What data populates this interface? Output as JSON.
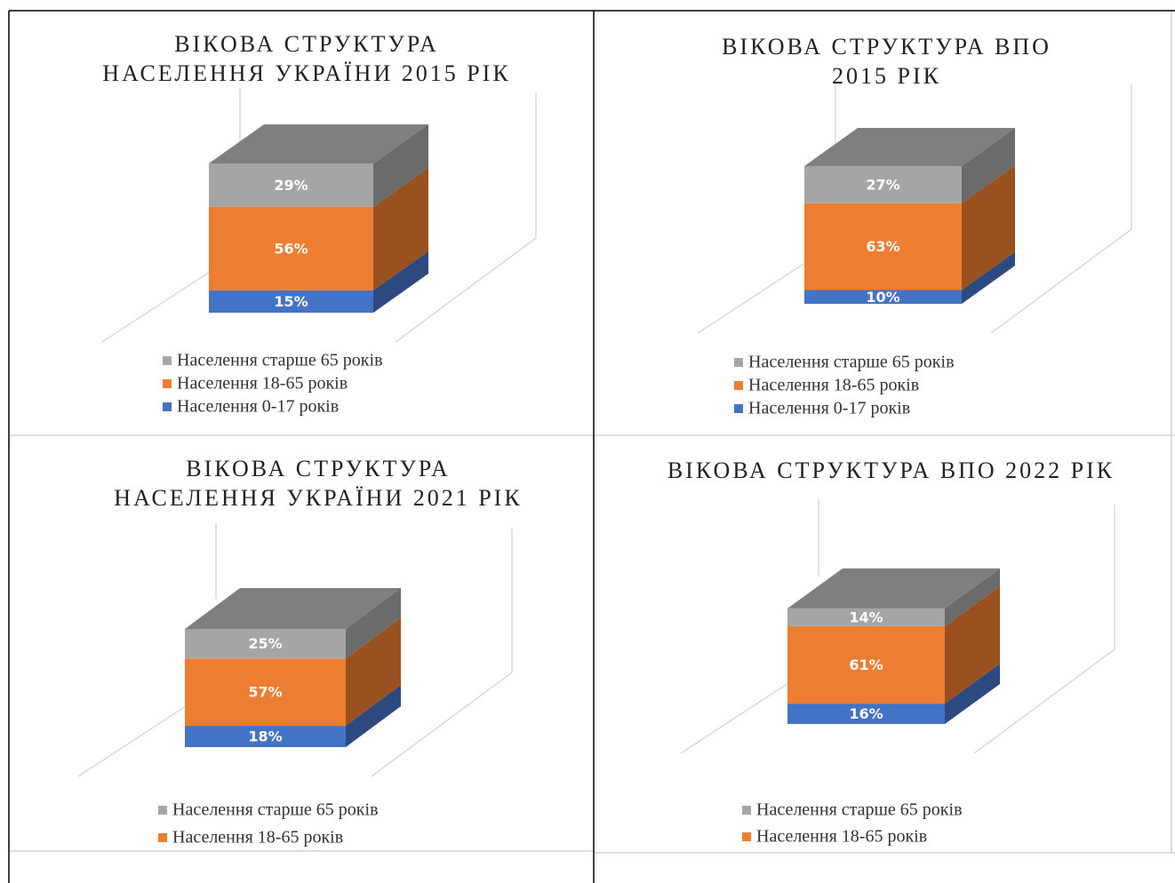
{
  "chart_data": [
    {
      "type": "bar3d_stacked",
      "title": "ВІКОВА СТРУКТУРА НАСЕЛЕННЯ УКРАЇНИ 2015 РІК",
      "categories": [
        null
      ],
      "series": [
        {
          "name": "Населення 0-17 років",
          "color": "#4472c4",
          "values": [
            15
          ],
          "value_labels": [
            "15%"
          ]
        },
        {
          "name": "Населення 18-65 років",
          "color": "#ed7d31",
          "values": [
            56
          ],
          "value_labels": [
            "56%"
          ]
        },
        {
          "name": "Населення старше 65 років",
          "color": "#a5a5a5",
          "values": [
            29
          ],
          "value_labels": [
            "29%"
          ]
        }
      ]
    },
    {
      "type": "bar3d_stacked",
      "title": "ВІКОВА СТРУКТУРА ВПО 2015 РІК",
      "categories": [
        null
      ],
      "series": [
        {
          "name": "Населення 0-17 років",
          "color": "#4472c4",
          "values": [
            10
          ],
          "value_labels": [
            "10%"
          ]
        },
        {
          "name": "Населення 18-65 років",
          "color": "#ed7d31",
          "values": [
            63
          ],
          "value_labels": [
            "63%"
          ]
        },
        {
          "name": "Населення старше 65 років",
          "color": "#a5a5a5",
          "values": [
            27
          ],
          "value_labels": [
            "27%"
          ]
        }
      ]
    },
    {
      "type": "bar3d_stacked",
      "title": "ВІКОВА СТРУКТУРА НАСЕЛЕННЯ УКРАЇНИ 2021 РІК",
      "categories": [
        null
      ],
      "series": [
        {
          "color": "#4472c4",
          "values": [
            18
          ],
          "value_labels": [
            "18%"
          ]
        },
        {
          "name": "Населення 18-65 років",
          "color": "#ed7d31",
          "values": [
            57
          ],
          "value_labels": [
            "57%"
          ]
        },
        {
          "name": "Населення старше 65 років",
          "color": "#a5a5a5",
          "values": [
            25
          ],
          "value_labels": [
            "25%"
          ]
        }
      ]
    },
    {
      "type": "bar3d_stacked",
      "title": "ВІКОВА СТРУКТУРА ВПО 2022 РІК",
      "categories": [
        null
      ],
      "series": [
        {
          "color": "#4472c4",
          "values": [
            16
          ],
          "value_labels": [
            "16%"
          ]
        },
        {
          "name": "Населення 18-65 років",
          "color": "#ed7d31",
          "values": [
            61
          ],
          "value_labels": [
            "61%"
          ]
        },
        {
          "name": "Населення старше 65 років",
          "color": "#a5a5a5",
          "values": [
            14
          ],
          "value_labels": [
            "14%"
          ]
        }
      ]
    }
  ]
}
